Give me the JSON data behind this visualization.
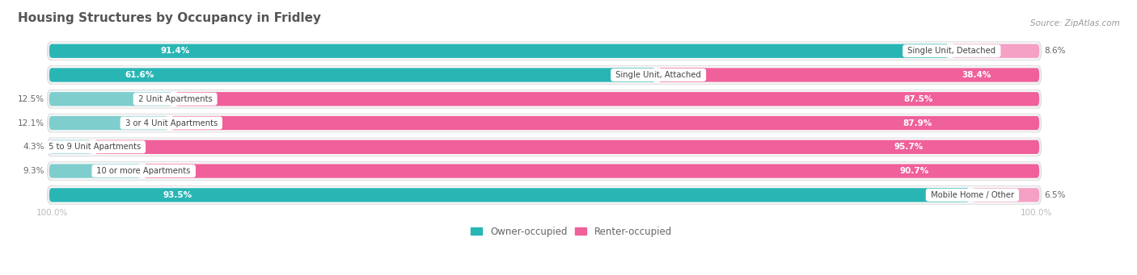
{
  "title": "Housing Structures by Occupancy in Fridley",
  "source": "Source: ZipAtlas.com",
  "categories": [
    "Single Unit, Detached",
    "Single Unit, Attached",
    "2 Unit Apartments",
    "3 or 4 Unit Apartments",
    "5 to 9 Unit Apartments",
    "10 or more Apartments",
    "Mobile Home / Other"
  ],
  "owner_pct": [
    91.4,
    61.6,
    12.5,
    12.1,
    4.3,
    9.3,
    93.5
  ],
  "renter_pct": [
    8.6,
    38.4,
    87.5,
    87.9,
    95.7,
    90.7,
    6.5
  ],
  "owner_color_dark": "#2ab5b5",
  "owner_color_light": "#7ecece",
  "renter_color_dark": "#f0609a",
  "renter_color_light": "#f5a0c5",
  "row_bg_color": "#eeeeee",
  "row_inner_color": "#f7f7f7",
  "label_color_dark": "#666666",
  "label_color_white": "#ffffff",
  "title_color": "#555555",
  "source_color": "#999999",
  "axis_label_color": "#bbbbbb",
  "legend_owner": "Owner-occupied",
  "legend_renter": "Renter-occupied",
  "figsize": [
    14.06,
    3.41
  ],
  "dpi": 100,
  "bar_height": 0.58,
  "xlim_left": -3.5,
  "xlim_right": 109.0,
  "owner_inside_threshold": 15,
  "renter_inside_threshold": 15
}
